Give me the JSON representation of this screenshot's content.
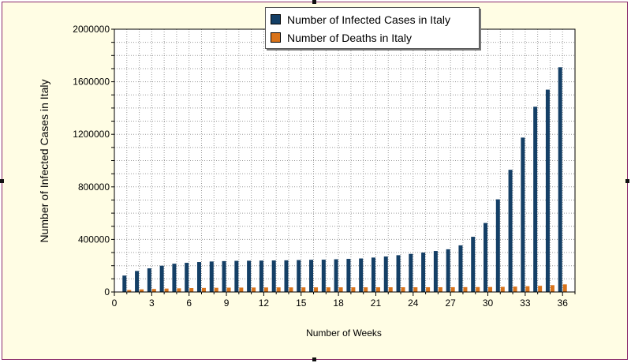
{
  "colors": {
    "infected": "#143f66",
    "deaths": "#d9731a",
    "frame_border": "#8b2a6b",
    "background": "#fffde4"
  },
  "chart_data": {
    "type": "bar",
    "title": "",
    "xlabel": "Number of Weeks",
    "ylabel": "Number of Infected Cases in Italy",
    "ylim": [
      0,
      2000000
    ],
    "xlim": [
      0,
      37
    ],
    "y_ticks": [
      0,
      400000,
      800000,
      1200000,
      1600000,
      2000000
    ],
    "x_ticks": [
      0,
      3,
      6,
      9,
      12,
      15,
      18,
      21,
      24,
      27,
      30,
      33,
      36
    ],
    "grid": true,
    "legend_position": "top-center",
    "x": [
      1,
      2,
      3,
      4,
      5,
      6,
      7,
      8,
      9,
      10,
      11,
      12,
      13,
      14,
      15,
      16,
      17,
      18,
      19,
      20,
      21,
      22,
      23,
      24,
      25,
      26,
      27,
      28,
      29,
      30,
      31,
      32,
      33,
      34,
      35,
      36
    ],
    "series": [
      {
        "name": "Number of Infected Cases in Italy",
        "values": [
          125000,
          160000,
          180000,
          200000,
          215000,
          222000,
          228000,
          232000,
          235000,
          237000,
          238000,
          239000,
          240000,
          241000,
          243000,
          245000,
          246000,
          249000,
          252000,
          255000,
          262000,
          270000,
          280000,
          290000,
          300000,
          312000,
          325000,
          355000,
          420000,
          525000,
          705000,
          930000,
          1175000,
          1410000,
          1540000,
          1710000
        ]
      },
      {
        "name": "Number of Deaths in Italy",
        "values": [
          15000,
          20000,
          23000,
          26000,
          28000,
          30000,
          31000,
          32000,
          33000,
          33500,
          34000,
          34500,
          35000,
          35000,
          35200,
          35300,
          35400,
          35500,
          35600,
          35700,
          35800,
          35900,
          36000,
          36000,
          36100,
          36200,
          36500,
          37000,
          37500,
          38000,
          39000,
          41000,
          44000,
          47000,
          52000,
          58000
        ]
      }
    ]
  }
}
